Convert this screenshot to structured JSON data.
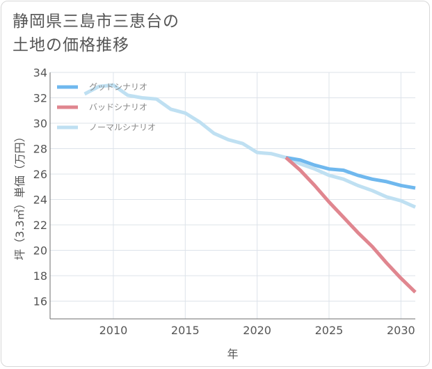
{
  "title": "静岡県三島市三恵台の\n土地の価格推移",
  "chart_data": {
    "type": "line",
    "title": "静岡県三島市三恵台の土地の価格推移",
    "xlabel": "年",
    "ylabel": "坪（3.3㎡）単価（万円）",
    "xlim": [
      2005.6,
      2031
    ],
    "ylim": [
      14.6,
      34
    ],
    "xticks": [
      2010,
      2015,
      2020,
      2025,
      2030
    ],
    "yticks": [
      16,
      18,
      20,
      22,
      24,
      26,
      28,
      30,
      32,
      34
    ],
    "grid": true,
    "legend_position": "top-left",
    "series": [
      {
        "name": "グッドシナリオ",
        "color": "#6fb8ee",
        "x": [
          2022,
          2023,
          2024,
          2025,
          2026,
          2027,
          2028,
          2029,
          2030,
          2031
        ],
        "values": [
          27.3,
          27.1,
          26.7,
          26.4,
          26.3,
          25.9,
          25.6,
          25.4,
          25.1,
          24.9
        ]
      },
      {
        "name": "バッドシナリオ",
        "color": "#e0868f",
        "x": [
          2022,
          2023,
          2024,
          2025,
          2026,
          2027,
          2028,
          2029,
          2030,
          2031
        ],
        "values": [
          27.3,
          26.3,
          25.1,
          23.8,
          22.6,
          21.4,
          20.3,
          19.0,
          17.8,
          16.7
        ]
      },
      {
        "name": "ノーマルシナリオ",
        "color": "#bfe0f2",
        "x": [
          2008,
          2009,
          2010,
          2011,
          2012,
          2013,
          2014,
          2015,
          2016,
          2017,
          2018,
          2019,
          2020,
          2021,
          2022,
          2023,
          2024,
          2025,
          2026,
          2027,
          2028,
          2029,
          2030,
          2031
        ],
        "values": [
          32.3,
          32.9,
          33.0,
          32.2,
          32.0,
          31.9,
          31.1,
          30.8,
          30.1,
          29.2,
          28.7,
          28.4,
          27.7,
          27.6,
          27.3,
          26.8,
          26.4,
          25.9,
          25.6,
          25.1,
          24.7,
          24.2,
          23.9,
          23.4
        ]
      }
    ]
  }
}
